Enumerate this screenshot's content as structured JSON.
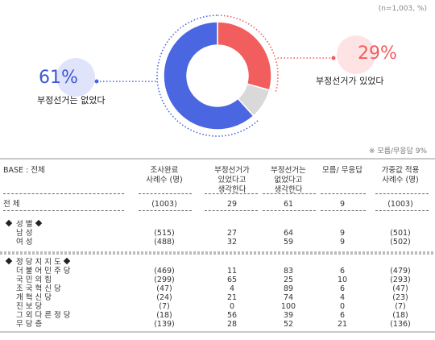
{
  "top_note": "(n=1,003, %)",
  "mid_note": "※ 모름/무응답 9%",
  "chart_data": {
    "type": "pie",
    "categories": [
      "부정선거가 있었다",
      "모름/무응답",
      "부정선거는 없었다"
    ],
    "values": [
      29,
      9,
      61
    ],
    "colors": [
      "#f25d5d",
      "#d9d9d9",
      "#4a66e0"
    ]
  },
  "callouts": {
    "left": {
      "pct": "61%",
      "caption": "부정선거는 없었다",
      "color": "#3d57d4",
      "bubble": "#dfe4fb"
    },
    "right": {
      "pct": "29%",
      "caption": "부정선거가 있었다",
      "color": "#f25d5d",
      "bubble": "#fde3e3"
    }
  },
  "table": {
    "header": {
      "base": "BASE : 전체",
      "cols": [
        "조사완료\n사례수 (명)",
        "부정선거가\n있었다고\n생각한다",
        "부정선거는\n없었다고\n생각한다",
        "모름/ 무응답",
        "가중값 적용\n사례수 (명)"
      ]
    },
    "total": {
      "label": "전             체",
      "cells": [
        "(1003)",
        "29",
        "61",
        "9",
        "(1003)"
      ]
    },
    "gender_title": "성                 별",
    "gender": [
      {
        "label": "남                 성",
        "cells": [
          "(515)",
          "27",
          "64",
          "9",
          "(501)"
        ]
      },
      {
        "label": "여                 성",
        "cells": [
          "(488)",
          "32",
          "59",
          "9",
          "(502)"
        ]
      }
    ],
    "party_title": "정    당    지    지    도",
    "party": [
      {
        "label": "더  불  어  민  주  당",
        "cells": [
          "(469)",
          "11",
          "83",
          "6",
          "(479)"
        ]
      },
      {
        "label": "국      민      의      힘",
        "cells": [
          "(299)",
          "65",
          "25",
          "10",
          "(293)"
        ]
      },
      {
        "label": "조    국    혁    신    당",
        "cells": [
          "(47)",
          "4",
          "89",
          "6",
          "(47)"
        ]
      },
      {
        "label": "개      혁      신      당",
        "cells": [
          "(24)",
          "21",
          "74",
          "4",
          "(23)"
        ]
      },
      {
        "label": "진      보      당",
        "cells": [
          "(7)",
          "0",
          "100",
          "0",
          "(7)"
        ]
      },
      {
        "label": "그  외  다  른  정  당",
        "cells": [
          "(18)",
          "56",
          "39",
          "6",
          "(18)"
        ]
      },
      {
        "label": "무        당        층",
        "cells": [
          "(139)",
          "28",
          "52",
          "21",
          "(136)"
        ]
      }
    ]
  }
}
